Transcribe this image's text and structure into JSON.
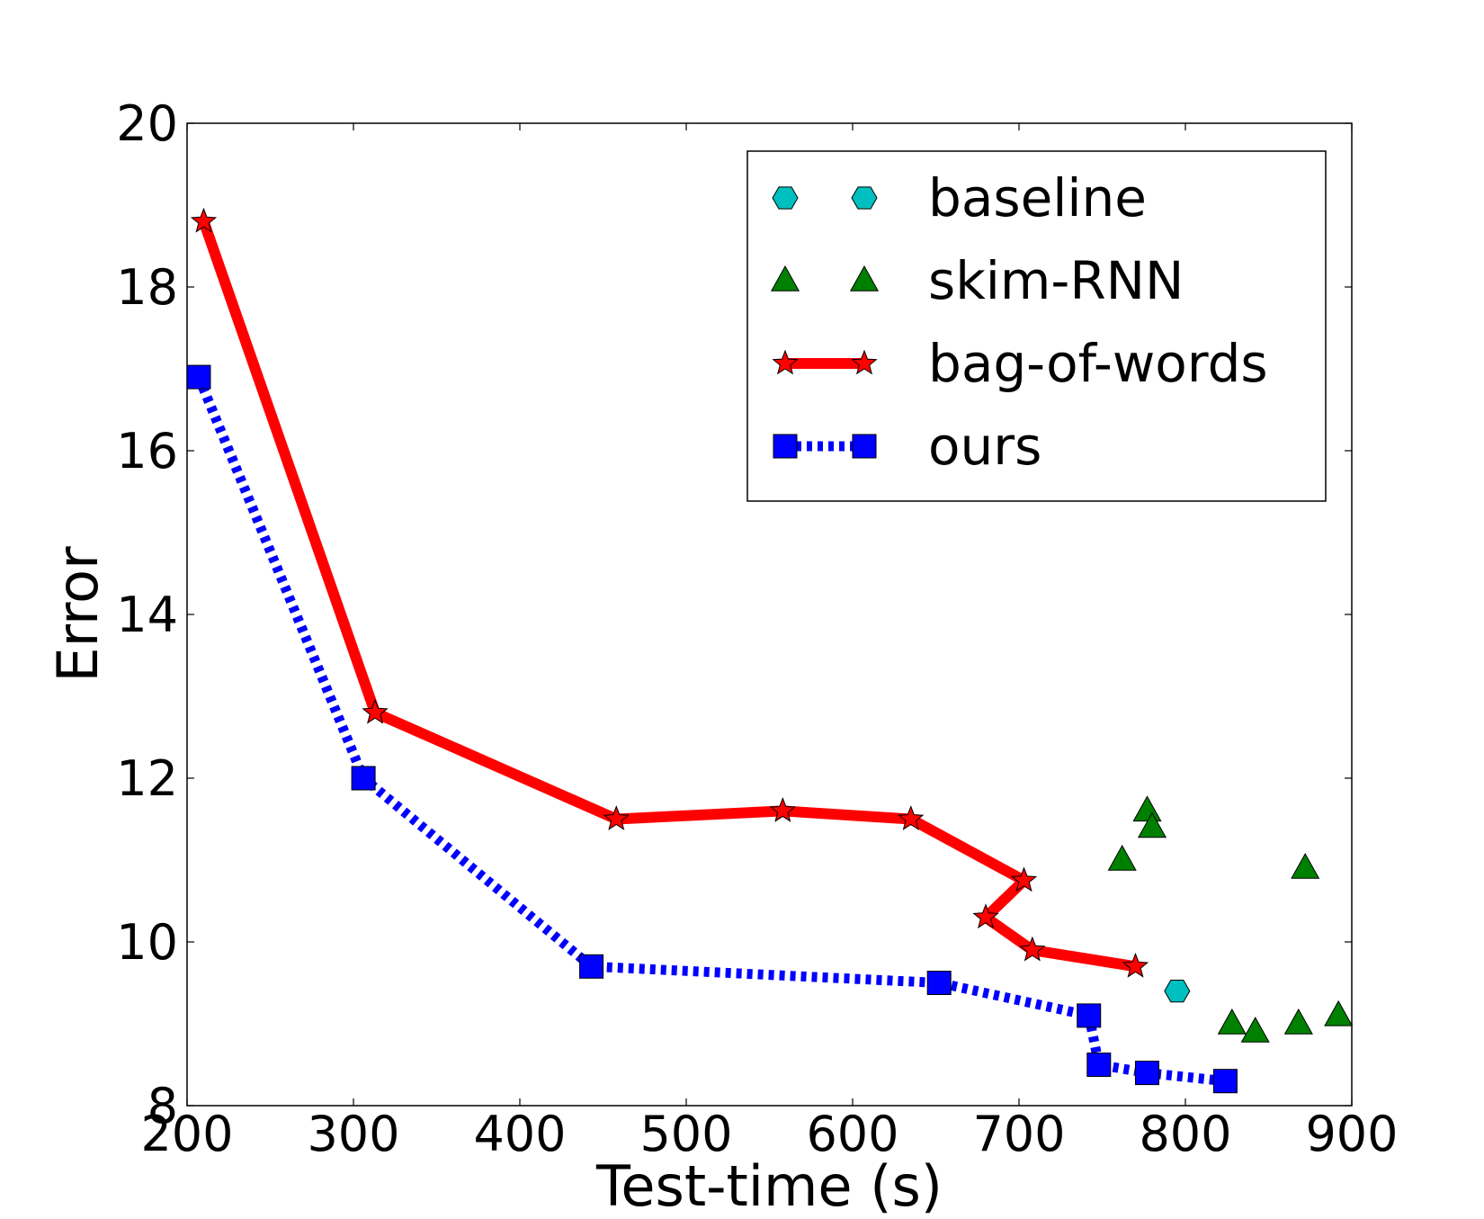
{
  "chart_data": {
    "type": "scatter",
    "title": "",
    "xlabel": "Test-time (s)",
    "ylabel": "Error",
    "xlim": [
      200,
      900
    ],
    "ylim": [
      8,
      20
    ],
    "xticks": [
      200,
      300,
      400,
      500,
      600,
      700,
      800,
      900
    ],
    "yticks": [
      8,
      10,
      12,
      14,
      16,
      18,
      20
    ],
    "grid": false,
    "legend_position": "top-right",
    "series": [
      {
        "name": "baseline",
        "color": "#00bfbf",
        "marker": "hexagon",
        "line": "none",
        "points": [
          [
            795,
            9.4
          ]
        ]
      },
      {
        "name": "skim-RNN",
        "color": "#008000",
        "marker": "triangle",
        "line": "none",
        "points": [
          [
            777,
            11.6
          ],
          [
            780,
            11.4
          ],
          [
            762,
            11.0
          ],
          [
            872,
            10.9
          ],
          [
            828,
            9.0
          ],
          [
            842,
            8.9
          ],
          [
            868,
            9.0
          ],
          [
            892,
            9.1
          ]
        ]
      },
      {
        "name": "bag-of-words",
        "color": "#ff0000",
        "marker": "star",
        "line": "solid",
        "points": [
          [
            210,
            18.8
          ],
          [
            313,
            12.8
          ],
          [
            458,
            11.5
          ],
          [
            558,
            11.6
          ],
          [
            635,
            11.5
          ],
          [
            703,
            10.75
          ],
          [
            680,
            10.3
          ],
          [
            708,
            9.9
          ],
          [
            770,
            9.7
          ]
        ]
      },
      {
        "name": "ours",
        "color": "#0000ff",
        "marker": "square",
        "line": "dotted",
        "points": [
          [
            207,
            16.9
          ],
          [
            306,
            12.0
          ],
          [
            443,
            9.7
          ],
          [
            652,
            9.5
          ],
          [
            742,
            9.1
          ],
          [
            748,
            8.5
          ],
          [
            777,
            8.4
          ],
          [
            824,
            8.3
          ]
        ]
      }
    ]
  }
}
